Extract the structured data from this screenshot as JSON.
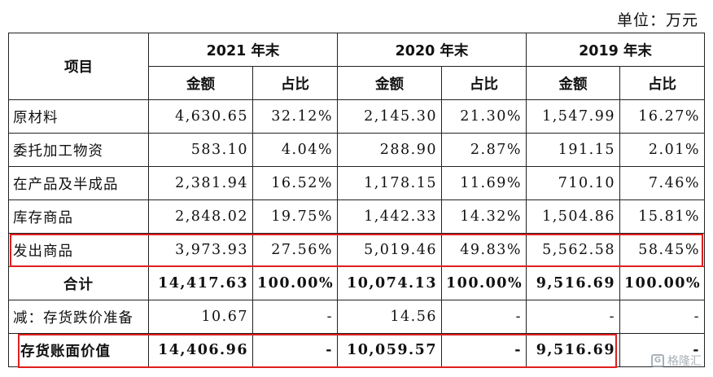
{
  "unit_label": "单位：万元",
  "header": {
    "item": "项目",
    "years": [
      "2021 年末",
      "2020 年末",
      "2019 年末"
    ],
    "amount": "金额",
    "ratio": "占比"
  },
  "rows": [
    {
      "label": "原材料",
      "c": [
        "4,630.65",
        "32.12%",
        "2,145.30",
        "21.30%",
        "1,547.99",
        "16.27%"
      ]
    },
    {
      "label": "委托加工物资",
      "c": [
        "583.10",
        "4.04%",
        "288.90",
        "2.87%",
        "191.15",
        "2.01%"
      ]
    },
    {
      "label": "在产品及半成品",
      "c": [
        "2,381.94",
        "16.52%",
        "1,178.15",
        "11.69%",
        "710.10",
        "7.46%"
      ]
    },
    {
      "label": "库存商品",
      "c": [
        "2,848.02",
        "19.75%",
        "1,442.33",
        "14.32%",
        "1,504.86",
        "15.81%"
      ]
    },
    {
      "label": "发出商品",
      "c": [
        "3,973.93",
        "27.56%",
        "5,019.46",
        "49.83%",
        "5,562.58",
        "58.45%"
      ]
    },
    {
      "label": "合计",
      "c": [
        "14,417.63",
        "100.00%",
        "10,074.13",
        "100.00%",
        "9,516.69",
        "100.00%"
      ]
    },
    {
      "label": "减：存货跌价准备",
      "c": [
        "10.67",
        "-",
        "14.56",
        "-",
        "-",
        "-"
      ]
    },
    {
      "label": "存货账面价值",
      "c": [
        "14,406.96",
        "-",
        "10,059.57",
        "-",
        "9,516.69",
        "-"
      ]
    }
  ],
  "watermark": "格隆汇",
  "highlight_color": "#e01e1e"
}
